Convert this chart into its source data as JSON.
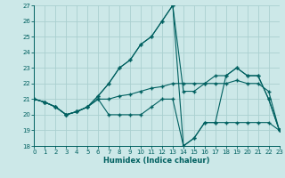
{
  "xlabel": "Humidex (Indice chaleur)",
  "bg_color": "#cce8e8",
  "grid_color": "#aad0d0",
  "line_color": "#006060",
  "xlim": [
    0,
    23
  ],
  "ylim": [
    18,
    27
  ],
  "xticks": [
    0,
    1,
    2,
    3,
    4,
    5,
    6,
    7,
    8,
    9,
    10,
    11,
    12,
    13,
    14,
    15,
    16,
    17,
    18,
    19,
    20,
    21,
    22,
    23
  ],
  "yticks": [
    18,
    19,
    20,
    21,
    22,
    23,
    24,
    25,
    26,
    27
  ],
  "series": [
    {
      "x": [
        0,
        1,
        2,
        3,
        4,
        5,
        6,
        7,
        8,
        9,
        10,
        11,
        12,
        13,
        14,
        15,
        16,
        17,
        18,
        19,
        20,
        21,
        22,
        23
      ],
      "y": [
        21,
        20.8,
        20.5,
        20,
        20.2,
        20.5,
        21,
        21,
        21.2,
        21.3,
        21.5,
        21.7,
        21.8,
        22,
        22,
        22,
        22,
        22,
        22,
        22.2,
        22,
        22,
        21.5,
        19
      ]
    },
    {
      "x": [
        0,
        1,
        2,
        3,
        4,
        5,
        6,
        7,
        8,
        9,
        10,
        11,
        12,
        13,
        14,
        15,
        16,
        17,
        18,
        19,
        20,
        21,
        22,
        23
      ],
      "y": [
        21,
        20.8,
        20.5,
        20,
        20.2,
        20.5,
        21.2,
        22,
        23,
        23.5,
        24.5,
        25,
        26,
        27,
        21.5,
        21.5,
        22,
        22.5,
        22.5,
        23,
        22.5,
        22.5,
        21,
        19
      ]
    },
    {
      "x": [
        0,
        1,
        2,
        3,
        4,
        5,
        6,
        7,
        8,
        9,
        10,
        11,
        12,
        13,
        14,
        15,
        16,
        17,
        18,
        19,
        20,
        21,
        22,
        23
      ],
      "y": [
        21,
        20.8,
        20.5,
        20,
        20.2,
        20.5,
        21,
        20,
        20,
        20,
        20,
        20.5,
        21,
        21,
        18,
        18.5,
        19.5,
        19.5,
        19.5,
        19.5,
        19.5,
        19.5,
        19.5,
        19
      ]
    },
    {
      "x": [
        0,
        1,
        2,
        3,
        4,
        5,
        6,
        7,
        8,
        9,
        10,
        11,
        12,
        13,
        14,
        15,
        16,
        17,
        18,
        19,
        20,
        21,
        22,
        23
      ],
      "y": [
        21,
        20.8,
        20.5,
        20,
        20.2,
        20.5,
        21.2,
        22,
        23,
        23.5,
        24.5,
        25,
        26,
        27,
        18,
        18.5,
        19.5,
        19.5,
        22.5,
        23,
        22.5,
        22.5,
        21,
        19
      ]
    }
  ]
}
